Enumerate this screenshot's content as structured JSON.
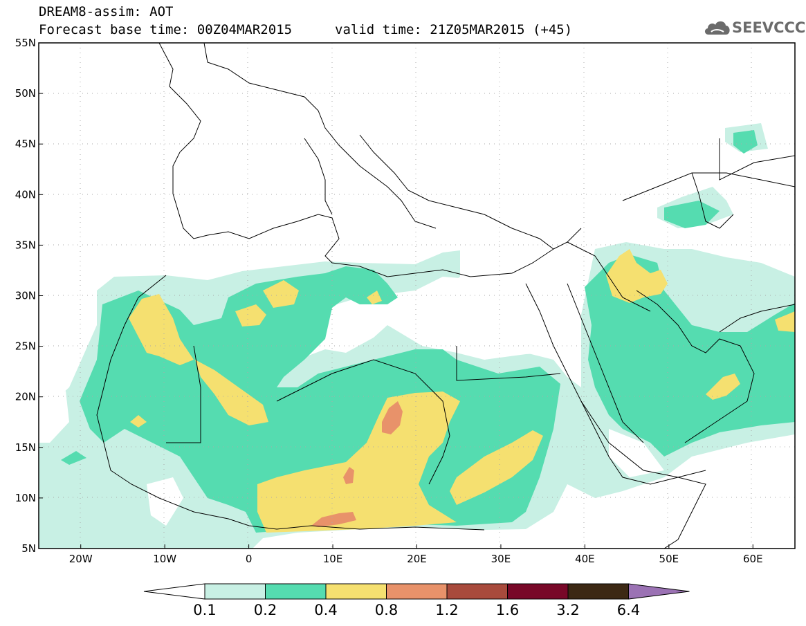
{
  "header": {
    "title": "DREAM8-assim: AOT",
    "base_time": "Forecast base time: 00Z04MAR2015",
    "valid_time": "valid time: 21Z05MAR2015 (+45)"
  },
  "logo": {
    "text": "SEEVCCC",
    "icon": "cloud-icon"
  },
  "axes": {
    "y_labels": [
      "55N",
      "50N",
      "45N",
      "40N",
      "35N",
      "30N",
      "25N",
      "20N",
      "15N",
      "10N",
      "5N"
    ],
    "x_labels": [
      "20W",
      "10W",
      "0",
      "10E",
      "20E",
      "30E",
      "40E",
      "50E",
      "60E"
    ],
    "lat_range": [
      5,
      55
    ],
    "lon_range": [
      -25,
      65
    ]
  },
  "colorbar": {
    "labels": [
      "0.1",
      "0.2",
      "0.4",
      "0.8",
      "1.2",
      "1.6",
      "3.2",
      "6.4"
    ],
    "colors": [
      "#ffffff",
      "#c8f0e4",
      "#55dcb0",
      "#f5e070",
      "#e8926a",
      "#a84a3c",
      "#780828",
      "#3c2814",
      "#9b72b4"
    ]
  }
}
